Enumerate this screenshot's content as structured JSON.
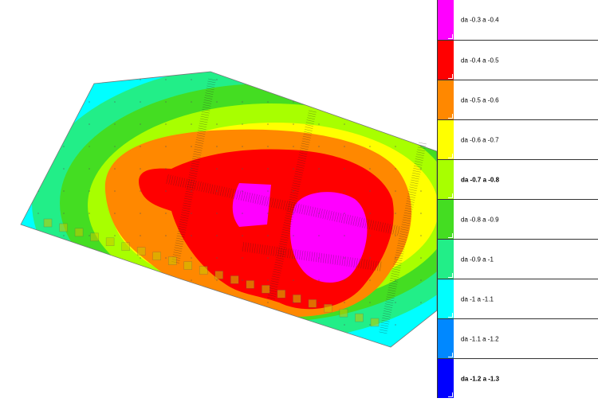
{
  "legend": {
    "items": [
      {
        "label": "da -0.3 a -0.4",
        "color": "#ff00ff",
        "bold": false
      },
      {
        "label": "da -0.4 a -0.5",
        "color": "#ff0000",
        "bold": false
      },
      {
        "label": "da -0.5 a -0.6",
        "color": "#ff8800",
        "bold": false
      },
      {
        "label": "da -0.6 a -0.7",
        "color": "#ffff00",
        "bold": false
      },
      {
        "label": "da -0.7 a -0.8",
        "color": "#a8ff00",
        "bold": true
      },
      {
        "label": "da -0.8 a -0.9",
        "color": "#44dd22",
        "bold": false
      },
      {
        "label": "da -0.9 a -1",
        "color": "#22ee88",
        "bold": false
      },
      {
        "label": "da -1 a -1.1",
        "color": "#00ffff",
        "bold": false
      },
      {
        "label": "da -1.1 a -1.2",
        "color": "#0088ff",
        "bold": false
      },
      {
        "label": "da -1.2 a -1.3",
        "color": "#0000ff",
        "bold": true
      }
    ]
  },
  "theme": {
    "beam_color": "#222222",
    "column_color": "#c8c800"
  }
}
